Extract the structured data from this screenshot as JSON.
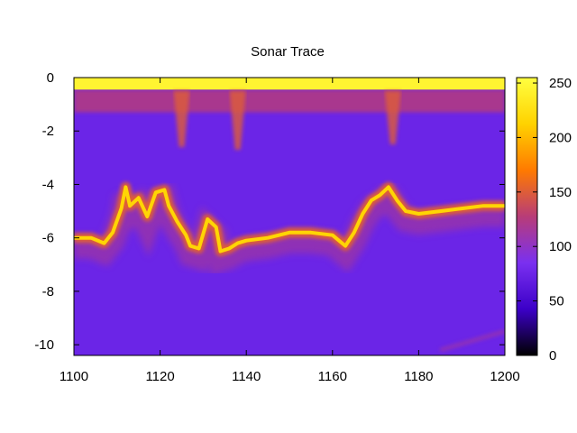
{
  "chart_data": {
    "type": "heatmap",
    "title": "Sonar Trace",
    "xlabel": "",
    "ylabel": "",
    "xlim": [
      1100,
      1200
    ],
    "ylim": [
      -10.4,
      0
    ],
    "x_ticks": [
      1100,
      1120,
      1140,
      1160,
      1180,
      1200
    ],
    "y_ticks": [
      0,
      -2,
      -4,
      -6,
      -8,
      -10
    ],
    "colorbar": {
      "range": [
        0,
        255
      ],
      "ticks": [
        0,
        50,
        100,
        150,
        200,
        250
      ],
      "palette": [
        "#000000",
        "#3c00c8",
        "#7a30f0",
        "#b83c78",
        "#ff7a00",
        "#ffd200",
        "#ffff40"
      ]
    },
    "background_level": 75,
    "surface_band": {
      "depth_top": 0.0,
      "depth_bottom": -0.45,
      "level": 245
    },
    "near_surface_band": {
      "depth_top": -0.45,
      "depth_bottom": -1.3,
      "level": 125
    },
    "bottom_trace": {
      "x": [
        1100,
        1104,
        1107,
        1109,
        1111,
        1112,
        1113,
        1115,
        1117,
        1119,
        1121,
        1122,
        1124,
        1126,
        1127,
        1129,
        1131,
        1133,
        1134,
        1136,
        1138,
        1140,
        1145,
        1150,
        1155,
        1160,
        1163,
        1165,
        1167,
        1169,
        1171,
        1173,
        1175,
        1177,
        1180,
        1185,
        1190,
        1195,
        1200
      ],
      "depth": [
        -6.0,
        -6.0,
        -6.2,
        -5.8,
        -4.9,
        -4.1,
        -4.8,
        -4.5,
        -5.2,
        -4.3,
        -4.2,
        -4.8,
        -5.4,
        -5.9,
        -6.3,
        -6.4,
        -5.3,
        -5.6,
        -6.5,
        -6.4,
        -6.2,
        -6.1,
        -6.0,
        -5.8,
        -5.8,
        -5.9,
        -6.3,
        -5.8,
        -5.1,
        -4.6,
        -4.4,
        -4.1,
        -4.6,
        -5.0,
        -5.1,
        -5.0,
        -4.9,
        -4.8,
        -4.8
      ],
      "level": 215
    },
    "plumes": [
      {
        "x": 1125,
        "depth_top": -0.5,
        "depth_bottom": -2.6,
        "level": 150
      },
      {
        "x": 1138,
        "depth_top": -0.5,
        "depth_bottom": -2.7,
        "level": 150
      },
      {
        "x": 1174,
        "depth_top": -0.5,
        "depth_bottom": -2.5,
        "level": 150
      }
    ],
    "secondary_layers": [
      {
        "x": [
          1185,
          1200
        ],
        "depth": [
          -10.2,
          -9.5
        ],
        "level": 115
      }
    ]
  }
}
